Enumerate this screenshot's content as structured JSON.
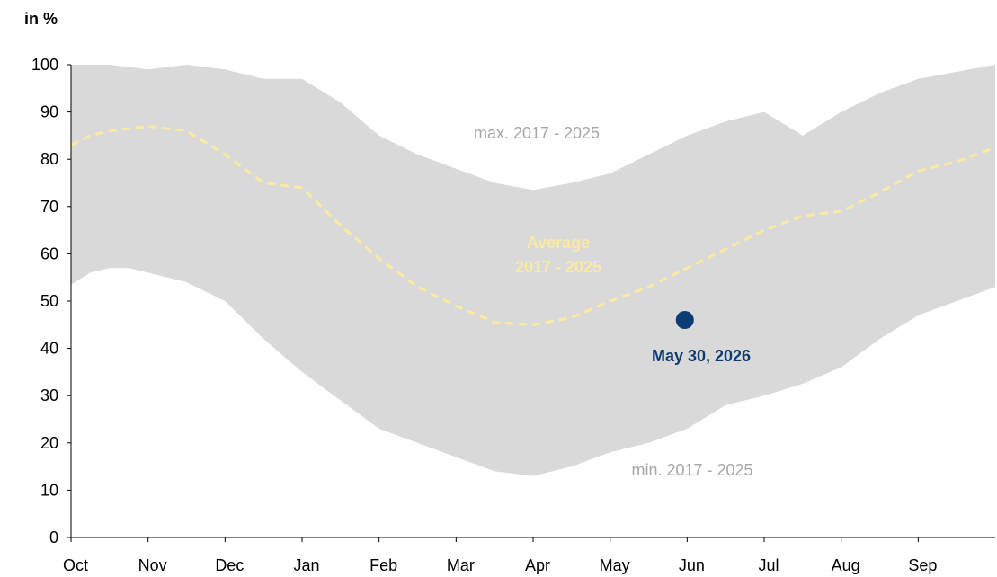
{
  "chart_data": {
    "type": "area",
    "ylabel": "in %",
    "ylim": [
      0,
      100
    ],
    "yticks": [
      "0",
      "10",
      "20",
      "30",
      "40",
      "50",
      "60",
      "70",
      "80",
      "90",
      "100"
    ],
    "categories": [
      "Oct",
      "Nov",
      "Dec",
      "Jan",
      "Feb",
      "Mar",
      "Apr",
      "May",
      "Jun",
      "Jul",
      "Aug",
      "Sep"
    ],
    "xlim": [
      0,
      12
    ],
    "grid": false,
    "series": [
      {
        "name": "max. 2017 - 2025",
        "color": "#d9d9d9",
        "x": [
          0,
          0.25,
          0.5,
          0.75,
          1,
          1.5,
          2,
          2.5,
          3,
          3.5,
          4,
          4.5,
          5,
          5.5,
          6,
          6.5,
          7,
          7.5,
          8,
          8.5,
          9,
          9.5,
          10,
          10.5,
          11,
          11.5,
          12
        ],
        "values": [
          100,
          100,
          100,
          99.5,
          99,
          100,
          99,
          97,
          97,
          92,
          85,
          81,
          78,
          75,
          73.5,
          75,
          77,
          81,
          85,
          88,
          90,
          85,
          90,
          94,
          97,
          98.5,
          100
        ]
      },
      {
        "name": "min. 2017 - 2025",
        "color": "#d9d9d9",
        "x": [
          0,
          0.25,
          0.5,
          0.75,
          1,
          1.5,
          2,
          2.5,
          3,
          3.5,
          4,
          4.5,
          5,
          5.5,
          6,
          6.5,
          7,
          7.5,
          8,
          8.5,
          9,
          9.5,
          10,
          10.5,
          11,
          11.5,
          12
        ],
        "values": [
          53.5,
          56,
          57,
          57,
          56,
          54,
          50,
          42,
          35,
          29,
          23,
          20,
          17,
          14,
          13,
          15,
          18,
          20,
          23,
          28,
          30,
          32.5,
          36,
          42,
          47,
          50,
          53
        ]
      },
      {
        "name": "Average 2017 - 2025",
        "color": "#fbeaa0",
        "x": [
          0,
          0.25,
          0.5,
          0.75,
          1,
          1.5,
          2,
          2.5,
          3,
          3.5,
          4,
          4.5,
          5,
          5.5,
          6,
          6.5,
          7,
          7.5,
          8,
          8.5,
          9,
          9.5,
          10,
          10.5,
          11,
          11.5,
          12
        ],
        "values": [
          83,
          85,
          86,
          86.5,
          87,
          86,
          81,
          75,
          74,
          66,
          59,
          53,
          49,
          45.5,
          45,
          46.5,
          50,
          53,
          57,
          61,
          65,
          68,
          69,
          73,
          77.5,
          79.5,
          82.5
        ]
      }
    ],
    "points": [
      {
        "label": "May 30, 2026",
        "x": 7.97,
        "y": 46,
        "color": "#0b3c73"
      }
    ],
    "annotations": {
      "max": "max. 2017 - 2025",
      "min": "min. 2017 - 2025",
      "avg_line1": "Average",
      "avg_line2": "2017 - 2025",
      "point": "May 30, 2026"
    }
  }
}
